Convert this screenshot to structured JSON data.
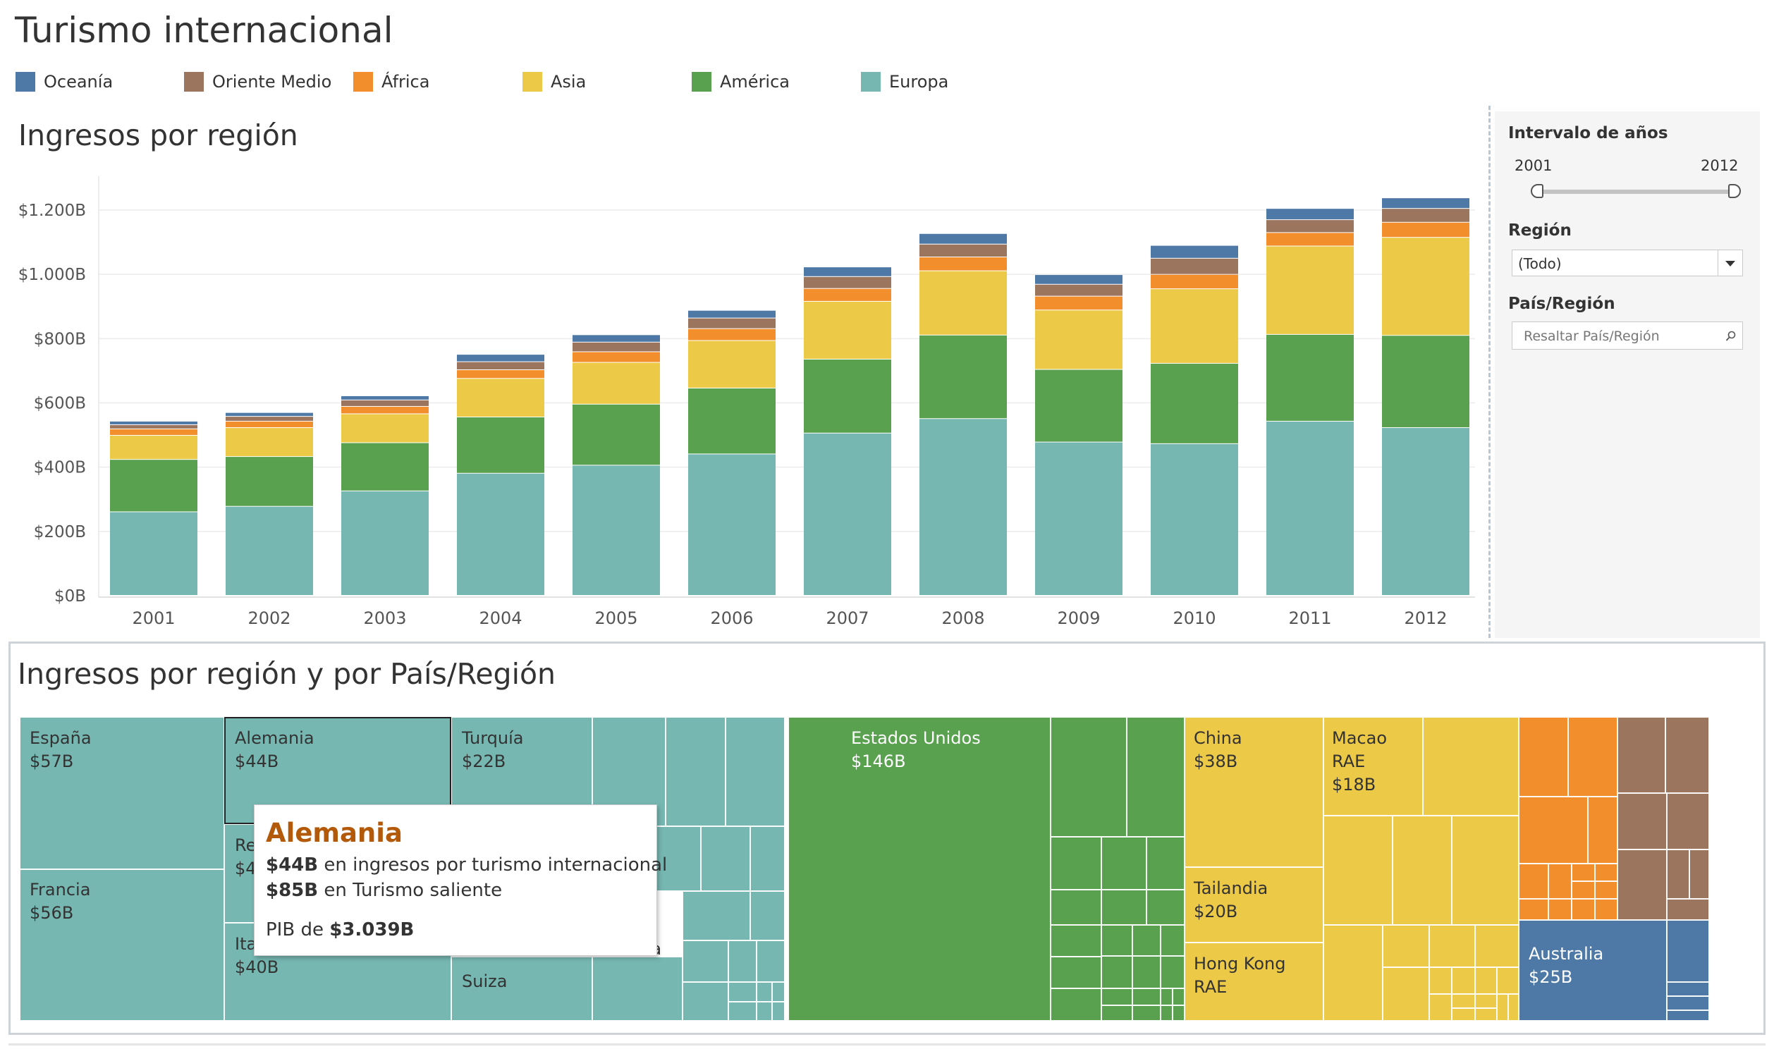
{
  "title": "Turismo internacional",
  "legend": [
    {
      "label": "Oceanía",
      "color": "#4e79a7"
    },
    {
      "label": "Oriente Medio",
      "color": "#9c755f"
    },
    {
      "label": "África",
      "color": "#f28e2b"
    },
    {
      "label": "Asia",
      "color": "#edc948"
    },
    {
      "label": "América",
      "color": "#59a14f"
    },
    {
      "label": "Europa",
      "color": "#76b7b2"
    }
  ],
  "bar_section": {
    "title": "Ingresos por región"
  },
  "chart_data": {
    "type": "bar",
    "stacked": true,
    "title": "Ingresos por región",
    "xlabel": "",
    "ylabel": "",
    "categories": [
      "2001",
      "2002",
      "2003",
      "2004",
      "2005",
      "2006",
      "2007",
      "2008",
      "2009",
      "2010",
      "2011",
      "2012"
    ],
    "ylim": [
      0,
      1260
    ],
    "y_ticks": [
      0,
      200,
      400,
      600,
      800,
      1000,
      1200
    ],
    "y_tick_labels": [
      "$0B",
      "$200B",
      "$400B",
      "$600B",
      "$800B",
      "$1.000B",
      "$1.200B"
    ],
    "grid": true,
    "legend_position": "top",
    "series": [
      {
        "name": "Europa",
        "color": "#76b7b2",
        "values": [
          260,
          277,
          325,
          380,
          405,
          440,
          505,
          550,
          477,
          472,
          542,
          522
        ]
      },
      {
        "name": "América",
        "color": "#59a14f",
        "values": [
          163,
          155,
          150,
          175,
          190,
          205,
          230,
          260,
          226,
          250,
          270,
          287
        ]
      },
      {
        "name": "Asia",
        "color": "#edc948",
        "values": [
          75,
          90,
          90,
          120,
          130,
          148,
          180,
          200,
          185,
          232,
          275,
          305
        ]
      },
      {
        "name": "África",
        "color": "#f28e2b",
        "values": [
          20,
          20,
          23,
          27,
          33,
          37,
          40,
          43,
          43,
          45,
          42,
          47
        ]
      },
      {
        "name": "Oriente Medio",
        "color": "#9c755f",
        "values": [
          13,
          15,
          20,
          25,
          30,
          33,
          37,
          40,
          37,
          50,
          40,
          43
        ]
      },
      {
        "name": "Oceanía",
        "color": "#4e79a7",
        "values": [
          11,
          12,
          13,
          23,
          23,
          24,
          30,
          33,
          30,
          40,
          35,
          33
        ]
      }
    ]
  },
  "filters": {
    "years_label": "Intervalo de años",
    "year_start": "2001",
    "year_end": "2012",
    "region_label": "Región",
    "region_value": "(Todo)",
    "country_label": "País/Región",
    "country_placeholder": "Resaltar País/Región"
  },
  "treemap": {
    "title": "Ingresos por región y por País/Región",
    "labels": [
      {
        "name": "España",
        "value": "$57B"
      },
      {
        "name": "Francia",
        "value": "$56B"
      },
      {
        "name": "Alemania",
        "value": "$44B"
      },
      {
        "name": "Re",
        "value": "$4"
      },
      {
        "name": "Ita",
        "value": "$40B"
      },
      {
        "name": "Turquía",
        "value": "$22B"
      },
      {
        "name": "Suiza",
        "value": ""
      },
      {
        "name": "Croacia",
        "value": ""
      },
      {
        "name": "Estados Unidos",
        "value": "$146B"
      },
      {
        "name": "China",
        "value": "$38B"
      },
      {
        "name": "Tailandia",
        "value": "$20B"
      },
      {
        "name": "Hong Kong",
        "value": "RAE"
      },
      {
        "name": "Macao",
        "value": "RAE"
      },
      {
        "name": "",
        "value": "$18B"
      },
      {
        "name": "Australia",
        "value": "$25B"
      }
    ]
  },
  "tooltip": {
    "title": "Alemania",
    "line1_bold": "$44B",
    "line1_rest": " en ingresos por turismo internacional",
    "line2_bold": "$85B",
    "line2_rest": " en Turismo saliente",
    "line3_pre": "PIB de ",
    "line3_bold": "$3.039B"
  }
}
